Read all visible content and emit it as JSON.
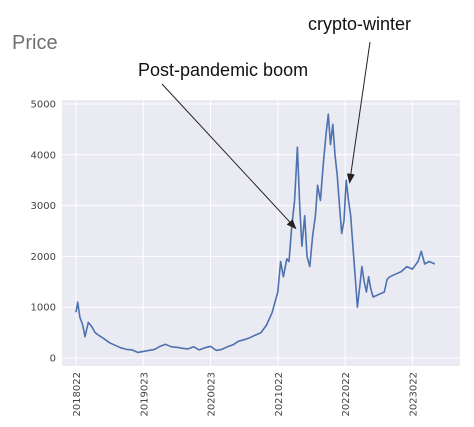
{
  "chart_data": {
    "type": "line",
    "title": "Price",
    "xlabel": "",
    "ylabel": "",
    "ylim": [
      0,
      5000
    ],
    "xlim": [
      0,
      66
    ],
    "grid": true,
    "background": "#eaeaf2",
    "line_color": "#4c72b0",
    "x_ticks": [
      {
        "label": "2018022",
        "pos": 0
      },
      {
        "label": "2019023",
        "pos": 12
      },
      {
        "label": "2020023",
        "pos": 24
      },
      {
        "label": "2021022",
        "pos": 36
      },
      {
        "label": "2022022",
        "pos": 48
      },
      {
        "label": "2023022",
        "pos": 60
      }
    ],
    "y_ticks": [
      0,
      1000,
      2000,
      3000,
      4000,
      5000
    ],
    "series": [
      {
        "values": [
          [
            0,
            900
          ],
          [
            0.3,
            1100
          ],
          [
            0.7,
            800
          ],
          [
            1.2,
            650
          ],
          [
            1.6,
            420
          ],
          [
            2.2,
            700
          ],
          [
            2.8,
            620
          ],
          [
            3.4,
            500
          ],
          [
            4,
            450
          ],
          [
            5,
            380
          ],
          [
            6,
            300
          ],
          [
            7,
            250
          ],
          [
            8,
            200
          ],
          [
            9,
            170
          ],
          [
            10,
            160
          ],
          [
            11,
            110
          ],
          [
            12,
            130
          ],
          [
            13,
            150
          ],
          [
            14,
            170
          ],
          [
            15,
            230
          ],
          [
            16,
            270
          ],
          [
            17,
            220
          ],
          [
            18,
            210
          ],
          [
            19,
            190
          ],
          [
            20,
            180
          ],
          [
            21,
            220
          ],
          [
            22,
            160
          ],
          [
            23,
            200
          ],
          [
            24,
            230
          ],
          [
            25,
            150
          ],
          [
            26,
            170
          ],
          [
            27,
            220
          ],
          [
            28,
            260
          ],
          [
            29,
            330
          ],
          [
            30,
            360
          ],
          [
            31,
            400
          ],
          [
            32,
            450
          ],
          [
            33,
            500
          ],
          [
            34,
            650
          ],
          [
            35,
            900
          ],
          [
            36,
            1300
          ],
          [
            36.5,
            1900
          ],
          [
            37,
            1600
          ],
          [
            37.6,
            1950
          ],
          [
            38,
            1900
          ],
          [
            38.5,
            2600
          ],
          [
            39,
            3100
          ],
          [
            39.5,
            4150
          ],
          [
            39.9,
            3000
          ],
          [
            40.3,
            2200
          ],
          [
            40.8,
            2800
          ],
          [
            41.2,
            2000
          ],
          [
            41.7,
            1800
          ],
          [
            42.2,
            2400
          ],
          [
            42.7,
            2800
          ],
          [
            43.1,
            3400
          ],
          [
            43.6,
            3100
          ],
          [
            44.1,
            3800
          ],
          [
            44.6,
            4400
          ],
          [
            45,
            4800
          ],
          [
            45.4,
            4200
          ],
          [
            45.8,
            4600
          ],
          [
            46.2,
            4000
          ],
          [
            46.6,
            3600
          ],
          [
            47,
            3000
          ],
          [
            47.4,
            2450
          ],
          [
            47.8,
            2700
          ],
          [
            48.2,
            3500
          ],
          [
            48.6,
            3100
          ],
          [
            49,
            2800
          ],
          [
            49.4,
            2200
          ],
          [
            49.8,
            1600
          ],
          [
            50.2,
            1000
          ],
          [
            50.6,
            1400
          ],
          [
            51,
            1800
          ],
          [
            51.4,
            1500
          ],
          [
            51.8,
            1300
          ],
          [
            52.2,
            1600
          ],
          [
            52.6,
            1350
          ],
          [
            53,
            1200
          ],
          [
            54,
            1250
          ],
          [
            55,
            1300
          ],
          [
            55.5,
            1550
          ],
          [
            56,
            1600
          ],
          [
            57,
            1650
          ],
          [
            58,
            1700
          ],
          [
            59,
            1800
          ],
          [
            60,
            1750
          ],
          [
            61,
            1900
          ],
          [
            61.6,
            2100
          ],
          [
            62.2,
            1850
          ],
          [
            63,
            1900
          ],
          [
            64,
            1850
          ]
        ]
      }
    ],
    "annotations": [
      {
        "text": "Post-pandemic boom",
        "point": [
          39.2,
          2550
        ]
      },
      {
        "text": "crypto-winter",
        "point": [
          48.8,
          3450
        ]
      }
    ]
  }
}
